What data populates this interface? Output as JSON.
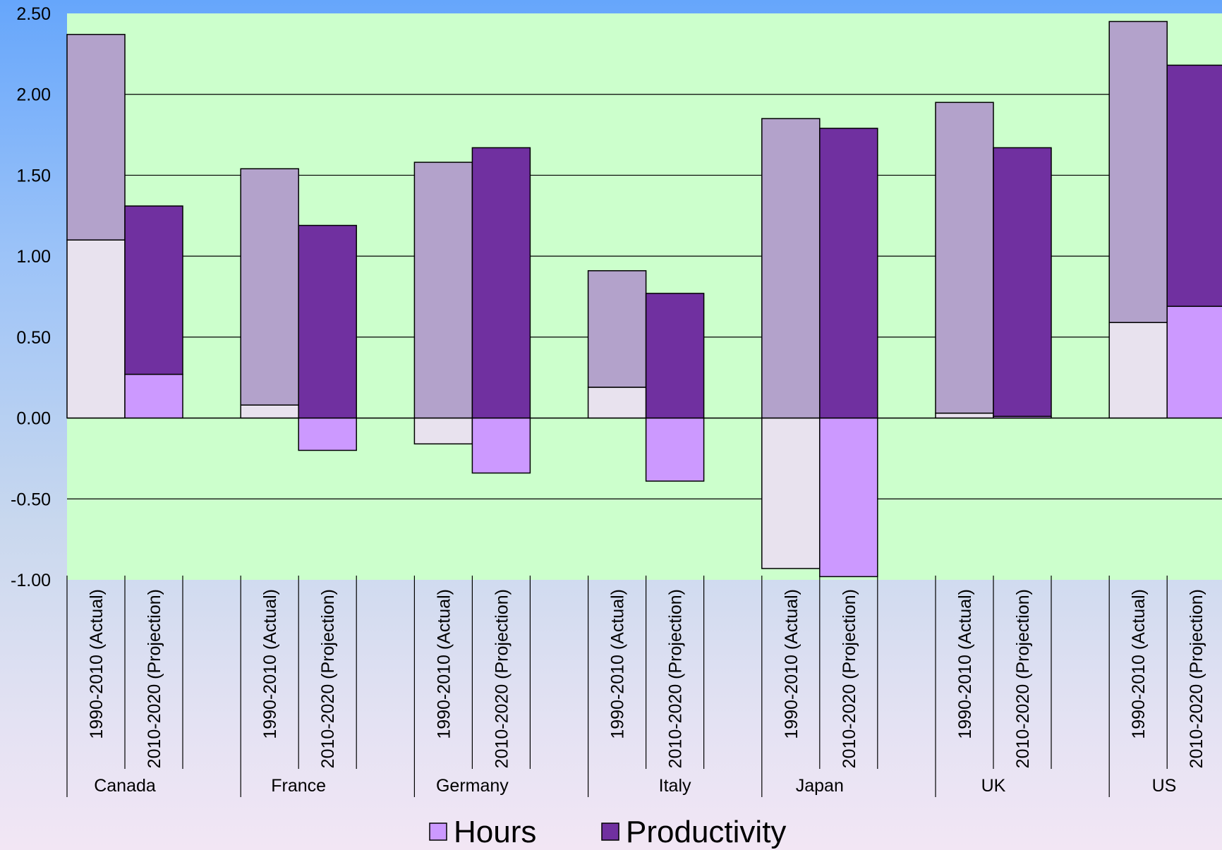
{
  "chart_data": {
    "type": "bar",
    "stacked": true,
    "title": "",
    "xlabel": "",
    "ylabel": "",
    "ylim": [
      -1.0,
      2.5
    ],
    "y_ticks": [
      "2.50",
      "2.00",
      "1.50",
      "1.00",
      "0.50",
      "0.00",
      "-0.50",
      "-1.00"
    ],
    "grid": true,
    "legend_position": "bottom-center",
    "groups": [
      {
        "name": "Canada",
        "periods": [
          "1990-2010 (Actual)",
          "2010-2020 (Projection)"
        ]
      },
      {
        "name": "France",
        "periods": [
          "1990-2010 (Actual)",
          "2010-2020 (Projection)"
        ]
      },
      {
        "name": "Germany",
        "periods": [
          "1990-2010 (Actual)",
          "2010-2020 (Projection)"
        ]
      },
      {
        "name": "Italy",
        "periods": [
          "1990-2010 (Actual)",
          "2010-2020 (Projection)"
        ]
      },
      {
        "name": "Japan",
        "periods": [
          "1990-2010 (Actual)",
          "2010-2020 (Projection)"
        ]
      },
      {
        "name": "UK",
        "periods": [
          "1990-2010 (Actual)",
          "2010-2020 (Projection)"
        ]
      },
      {
        "name": "US",
        "periods": [
          "1990-2010 (Actual)",
          "2010-2020 (Projection)"
        ]
      }
    ],
    "series": [
      {
        "name": "Hours",
        "values": [
          1.1,
          0.27,
          0.08,
          -0.2,
          -0.16,
          -0.34,
          0.19,
          -0.39,
          -0.93,
          -0.98,
          0.03,
          0.01,
          0.59,
          0.69
        ]
      },
      {
        "name": "Productivity",
        "values": [
          1.27,
          1.04,
          1.46,
          1.19,
          1.58,
          1.67,
          0.72,
          0.77,
          1.85,
          1.79,
          1.92,
          1.66,
          1.86,
          1.49
        ]
      }
    ],
    "colors": {
      "plot_bg": "#ccffcc",
      "hours_actual": "#e8e2ee",
      "hours_projection": "#cc99ff",
      "productivity_actual": "#b3a2cb",
      "productivity_projection": "#7030a0",
      "legend_hours": "#cc99ff",
      "legend_productivity": "#7030a0"
    }
  }
}
